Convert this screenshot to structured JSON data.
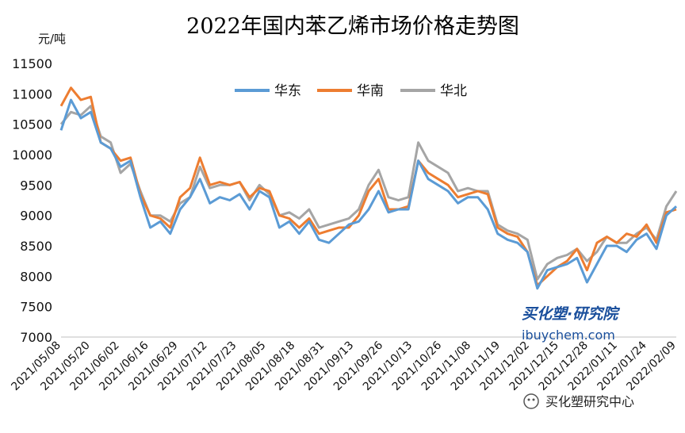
{
  "chart_data": {
    "type": "line",
    "title": "2022年国内苯乙烯市场价格走势图",
    "ylabel": "元/吨",
    "xlabel": "",
    "ylim": [
      7000,
      11500
    ],
    "yticks": [
      7000,
      7500,
      8000,
      8500,
      9000,
      9500,
      10000,
      10500,
      11000,
      11500
    ],
    "grid": false,
    "legend_position": "top-center",
    "x_tick_labels": [
      "2021/05/08",
      "2021/05/20",
      "2021/06/02",
      "2021/06/16",
      "2021/06/29",
      "2021/07/12",
      "2021/07/23",
      "2021/08/05",
      "2021/08/18",
      "2021/08/31",
      "2021/09/13",
      "2021/09/26",
      "2021/10/13",
      "2021/10/26",
      "2021/11/08",
      "2021/11/19",
      "2021/12/02",
      "2021/12/15",
      "2021/12/28",
      "2022/01/11",
      "2022/01/24",
      "2022/02/09"
    ],
    "x": [
      "2021/05/08",
      "2021/05/12",
      "2021/05/17",
      "2021/05/20",
      "2021/05/25",
      "2021/05/28",
      "2021/06/02",
      "2021/06/07",
      "2021/06/11",
      "2021/06/16",
      "2021/06/21",
      "2021/06/24",
      "2021/06/29",
      "2021/07/02",
      "2021/07/07",
      "2021/07/12",
      "2021/07/15",
      "2021/07/20",
      "2021/07/23",
      "2021/07/28",
      "2021/08/02",
      "2021/08/05",
      "2021/08/10",
      "2021/08/13",
      "2021/08/18",
      "2021/08/23",
      "2021/08/26",
      "2021/08/31",
      "2021/09/03",
      "2021/09/08",
      "2021/09/13",
      "2021/09/16",
      "2021/09/22",
      "2021/09/26",
      "2021/09/30",
      "2021/10/08",
      "2021/10/13",
      "2021/10/18",
      "2021/10/21",
      "2021/10/26",
      "2021/10/29",
      "2021/11/03",
      "2021/11/08",
      "2021/11/11",
      "2021/11/16",
      "2021/11/19",
      "2021/11/24",
      "2021/11/29",
      "2021/12/02",
      "2021/12/07",
      "2021/12/10",
      "2021/12/15",
      "2021/12/20",
      "2021/12/23",
      "2021/12/28",
      "2022/01/04",
      "2022/01/07",
      "2022/01/11",
      "2022/01/14",
      "2022/01/19",
      "2022/01/24",
      "2022/01/27",
      "2022/02/09"
    ],
    "series": [
      {
        "name": "华东",
        "color": "#5b9bd5",
        "values": [
          10400,
          10900,
          10600,
          10700,
          10200,
          10100,
          9800,
          9900,
          9300,
          8800,
          8900,
          8700,
          9100,
          9300,
          9600,
          9200,
          9300,
          9250,
          9350,
          9100,
          9400,
          9300,
          8800,
          8900,
          8700,
          8900,
          8600,
          8550,
          8700,
          8850,
          8900,
          9100,
          9400,
          9050,
          9100,
          9100,
          9900,
          9600,
          9500,
          9400,
          9200,
          9300,
          9300,
          9100,
          8700,
          8600,
          8550,
          8400,
          7800,
          8100,
          8150,
          8200,
          8300,
          7900,
          8200,
          8500,
          8500,
          8400,
          8600,
          8700,
          8450,
          9000,
          9150
        ]
      },
      {
        "name": "华南",
        "color": "#ed7d31",
        "values": [
          10800,
          11100,
          10900,
          10950,
          10200,
          10100,
          9900,
          9950,
          9350,
          9000,
          8950,
          8800,
          9300,
          9450,
          9950,
          9500,
          9550,
          9500,
          9550,
          9300,
          9450,
          9400,
          9000,
          8950,
          8800,
          8950,
          8700,
          8750,
          8800,
          8800,
          9000,
          9400,
          9600,
          9100,
          9100,
          9150,
          9900,
          9700,
          9600,
          9500,
          9300,
          9350,
          9400,
          9350,
          8800,
          8700,
          8650,
          8400,
          7850,
          8000,
          8150,
          8250,
          8450,
          8100,
          8550,
          8650,
          8550,
          8700,
          8650,
          8850,
          8550,
          9050,
          9100
        ]
      },
      {
        "name": "华北",
        "color": "#a5a5a5",
        "values": [
          10500,
          10700,
          10650,
          10800,
          10300,
          10200,
          9700,
          9850,
          9400,
          9000,
          9000,
          8900,
          9200,
          9300,
          9800,
          9450,
          9500,
          9500,
          9550,
          9250,
          9500,
          9350,
          9000,
          9050,
          8950,
          9100,
          8800,
          8850,
          8900,
          8950,
          9100,
          9500,
          9750,
          9300,
          9250,
          9300,
          10200,
          9900,
          9800,
          9700,
          9400,
          9450,
          9400,
          9400,
          8850,
          8750,
          8700,
          8600,
          7950,
          8200,
          8300,
          8350,
          8450,
          8250,
          8400,
          8650,
          8550,
          8550,
          8700,
          8800,
          8600,
          9150,
          9400
        ]
      }
    ]
  },
  "watermark": {
    "brand_cn": "买化塑·研究院",
    "brand_url": "ibuychem.com",
    "wechat_label": "买化塑研究中心"
  }
}
